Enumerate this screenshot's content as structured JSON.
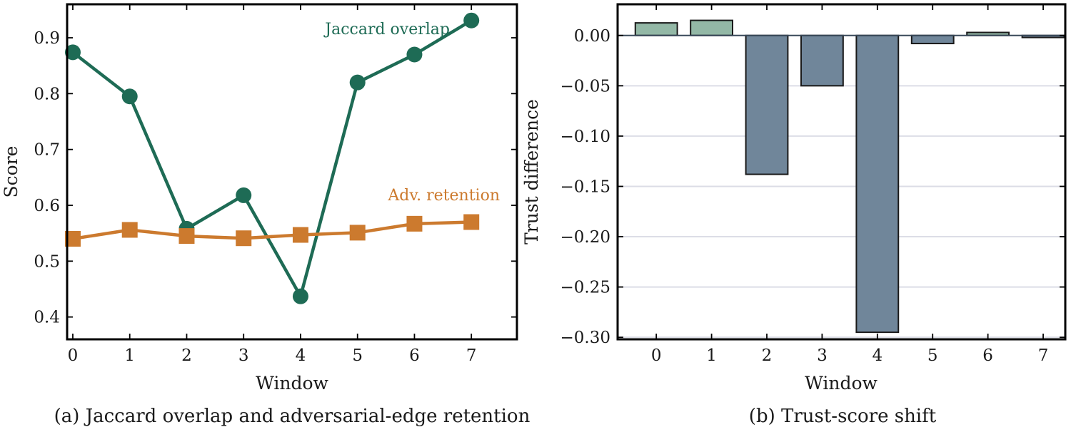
{
  "colors": {
    "jaccard": "#1e6b55",
    "retention": "#cc7a2e",
    "bar_positive": "#93b8a6",
    "bar_negative": "#70869a",
    "grid": "#dcdde6",
    "axis": "#000000"
  },
  "chart_data": [
    {
      "type": "line",
      "caption": "(a) Jaccard overlap and adversarial-edge retention",
      "xlabel": "Window",
      "ylabel": "Score",
      "x": [
        0,
        1,
        2,
        3,
        4,
        5,
        6,
        7
      ],
      "xlim": [
        -0.1,
        7.8
      ],
      "ylim": [
        0.36,
        0.96
      ],
      "yticks": [
        "0.4",
        "0.5",
        "0.6",
        "0.7",
        "0.8",
        "0.9"
      ],
      "grid": false,
      "series": [
        {
          "name": "Jaccard overlap",
          "values": [
            0.874,
            0.795,
            0.558,
            0.618,
            0.437,
            0.82,
            0.87,
            0.931
          ],
          "marker": "circle"
        },
        {
          "name": "Adv. retention",
          "values": [
            0.54,
            0.556,
            0.545,
            0.541,
            0.547,
            0.551,
            0.567,
            0.57
          ],
          "marker": "square"
        }
      ]
    },
    {
      "type": "bar",
      "caption": "(b) Trust-score shift",
      "xlabel": "Window",
      "ylabel": "Trust difference",
      "categories": [
        "0",
        "1",
        "2",
        "3",
        "4",
        "5",
        "6",
        "7"
      ],
      "values": [
        0.0125,
        0.015,
        -0.138,
        -0.05,
        -0.295,
        -0.008,
        0.003,
        -0.002
      ],
      "xlim": [
        -0.7,
        7.4
      ],
      "ylim": [
        -0.302,
        0.031
      ],
      "yticks": [
        "0.00",
        "−0.05",
        "−0.10",
        "−0.15",
        "−0.20",
        "−0.25",
        "−0.30"
      ],
      "grid": true
    }
  ]
}
